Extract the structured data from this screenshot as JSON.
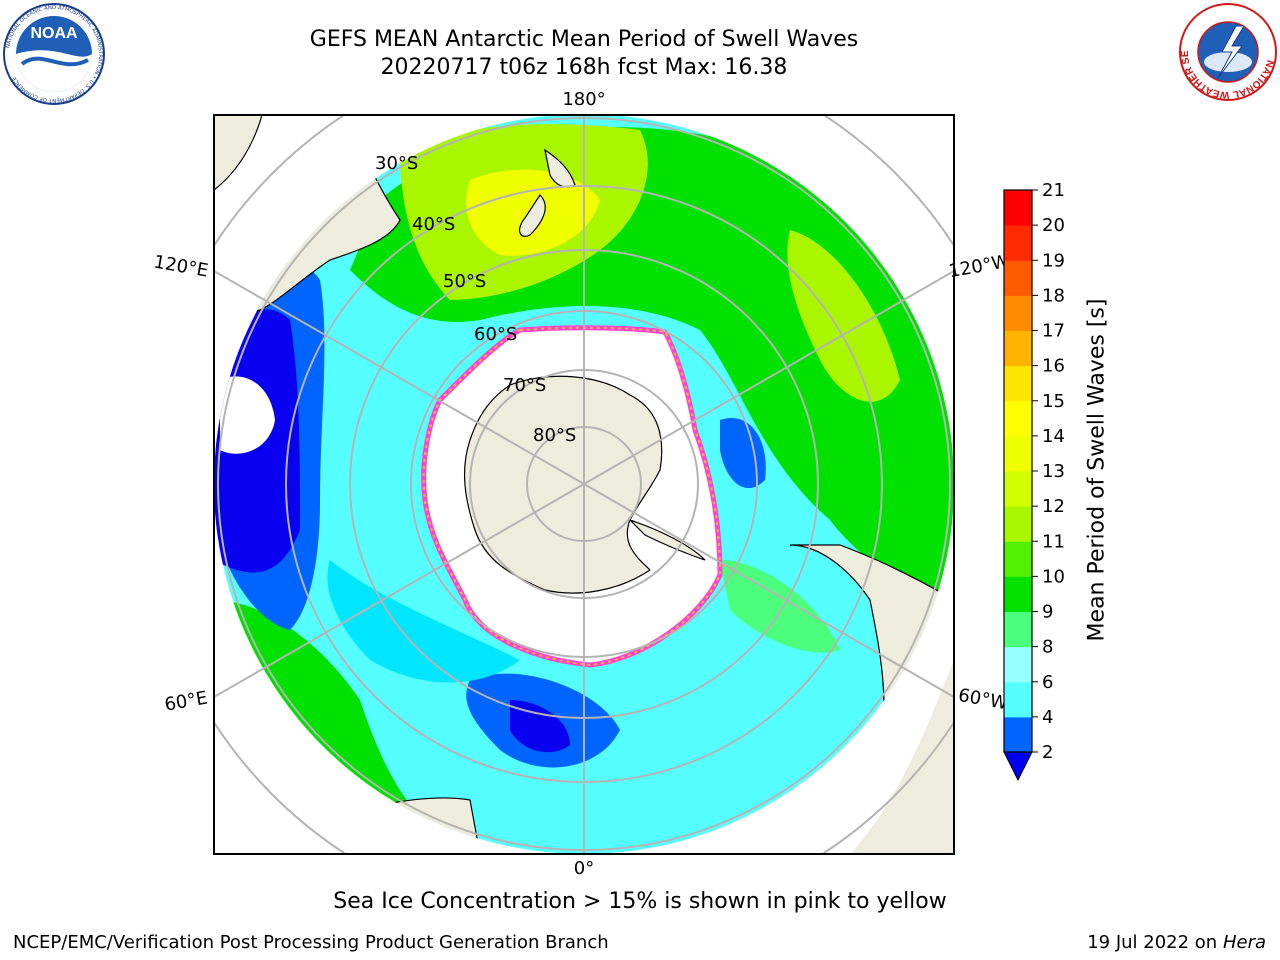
{
  "header": {
    "title_line1": "GEFS MEAN Antarctic Mean Period of Swell Waves",
    "title_line2": "20220717 t06z 168h fcst   Max: 16.38"
  },
  "logos": {
    "left": "noaa-logo",
    "right": "nws-logo",
    "noaa_text": "NOAA",
    "noaa_ring_text": "NATIONAL OCEANIC AND ATMOSPHERIC ADMINISTRATION • U.S. DEPARTMENT OF COMMERCE",
    "nws_ring_text": "NATIONAL WEATHER SERVICE"
  },
  "map": {
    "projection": "south-polar-stereographic",
    "longitude_labels": [
      "180°",
      "120°E",
      "120°W",
      "60°E",
      "60°W",
      "0°"
    ],
    "latitude_labels": [
      "30°S",
      "40°S",
      "50°S",
      "60°S",
      "70°S",
      "80°S"
    ],
    "colors": {
      "land": "#eeecdc",
      "ice_edge": "#ff44cc",
      "ice_inner": "#ffb347",
      "grid": "#b4b4b4",
      "deep_blue": "#0a00f0",
      "blue": "#0064ff",
      "cyan": "#00e6ff",
      "light_cyan": "#55ffff",
      "pale_cyan": "#96ffff",
      "green_light": "#4bff7d",
      "green": "#00e100",
      "lime": "#78f000",
      "yellow_green": "#d2ff00",
      "yellow": "#ffff00"
    }
  },
  "colorbar": {
    "label": "Mean Period of Swell Waves [s]",
    "ticks": [
      "2",
      "4",
      "6",
      "8",
      "9",
      "10",
      "11",
      "12",
      "13",
      "14",
      "15",
      "16",
      "17",
      "18",
      "19",
      "20",
      "21"
    ],
    "colors": [
      "#0064ff",
      "#00e6ff",
      "#55ffff",
      "#96ffff",
      "#4bff7d",
      "#00e100",
      "#50f000",
      "#aaf500",
      "#d2ff00",
      "#f0ff00",
      "#ffff00",
      "#ffe600",
      "#ffb400",
      "#ff8c00",
      "#ff5a00",
      "#ff2a00",
      "#ff0000"
    ],
    "extend_min_color": "#0000f0"
  },
  "caption": "Sea Ice Concentration > 15% is shown in pink to yellow",
  "footer": {
    "left": "NCEP/EMC/Verification Post Processing Product Generation Branch",
    "right_prefix": "19 Jul 2022 on ",
    "right_host": "Hera"
  }
}
